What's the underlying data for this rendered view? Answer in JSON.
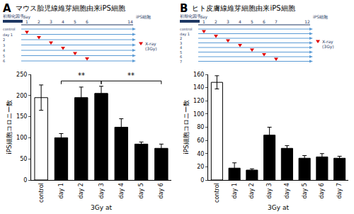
{
  "chart_data": [
    {
      "panel_label": "A",
      "type": "bar",
      "title": "マウス胎児線維芽細胞由来iPS細胞",
      "categories": [
        "control",
        "day 1",
        "day 2",
        "day 3",
        "day 4",
        "day 5",
        "day 6"
      ],
      "values": [
        195,
        100,
        195,
        205,
        125,
        85,
        75
      ],
      "errors": [
        30,
        10,
        25,
        17,
        20,
        5,
        10
      ],
      "colors": [
        "#ffffff",
        "#000000",
        "#000000",
        "#000000",
        "#000000",
        "#000000",
        "#000000"
      ],
      "y_label": "iPS細胞コロニー数",
      "x_label": "3Gy at",
      "ylim": [
        0,
        250
      ],
      "yticks": [
        0,
        50,
        100,
        150,
        200,
        250
      ],
      "grid": false,
      "significance": [
        {
          "from": "day 1",
          "to": "day 3",
          "label": "**"
        },
        {
          "from": "day 3",
          "to": "day 6",
          "label": "**"
        }
      ]
    },
    {
      "panel_label": "B",
      "type": "bar",
      "title": "ヒト皮膚線維芽細胞由来iPS細胞",
      "categories": [
        "control",
        "day 1",
        "day 2",
        "day 3",
        "day 4",
        "day 5",
        "day 6",
        "day 7"
      ],
      "values": [
        148,
        18,
        15,
        68,
        48,
        33,
        35,
        33
      ],
      "errors": [
        10,
        8,
        2,
        12,
        4,
        4,
        5,
        3
      ],
      "colors": [
        "#ffffff",
        "#000000",
        "#000000",
        "#000000",
        "#000000",
        "#000000",
        "#000000",
        "#000000"
      ],
      "y_label": "iPS細胞コロニー数",
      "x_label": "3Gy at",
      "ylim": [
        0,
        160
      ],
      "yticks": [
        0,
        20,
        40,
        60,
        80,
        100,
        120,
        140,
        160
      ],
      "grid": false
    }
  ],
  "diagrams": [
    {
      "factor_label": "初期化因子",
      "day_label": "day",
      "days": [
        1,
        2,
        3,
        4,
        5,
        6
      ],
      "end_day": 14,
      "end_label": "iPS細胞",
      "rows": [
        "control",
        "day 1",
        "2",
        "3",
        "4",
        "5",
        "6"
      ],
      "irradiation_days": [
        null,
        1,
        2,
        3,
        4,
        5,
        6
      ],
      "irradiation_label": [
        "X-ray",
        "(3Gy)"
      ]
    },
    {
      "factor_label": "初期化因子",
      "day_label": "day",
      "days": [
        1,
        2,
        3,
        4,
        5,
        6,
        7
      ],
      "end_day": 12,
      "end_label": "iPS細胞",
      "rows": [
        "control",
        "day 1",
        "2",
        "3",
        "4",
        "5",
        "6",
        "7"
      ],
      "irradiation_days": [
        null,
        1,
        2,
        3,
        4,
        5,
        6,
        7
      ],
      "irradiation_label": [
        "X-ray",
        "(3Gy)"
      ]
    }
  ]
}
